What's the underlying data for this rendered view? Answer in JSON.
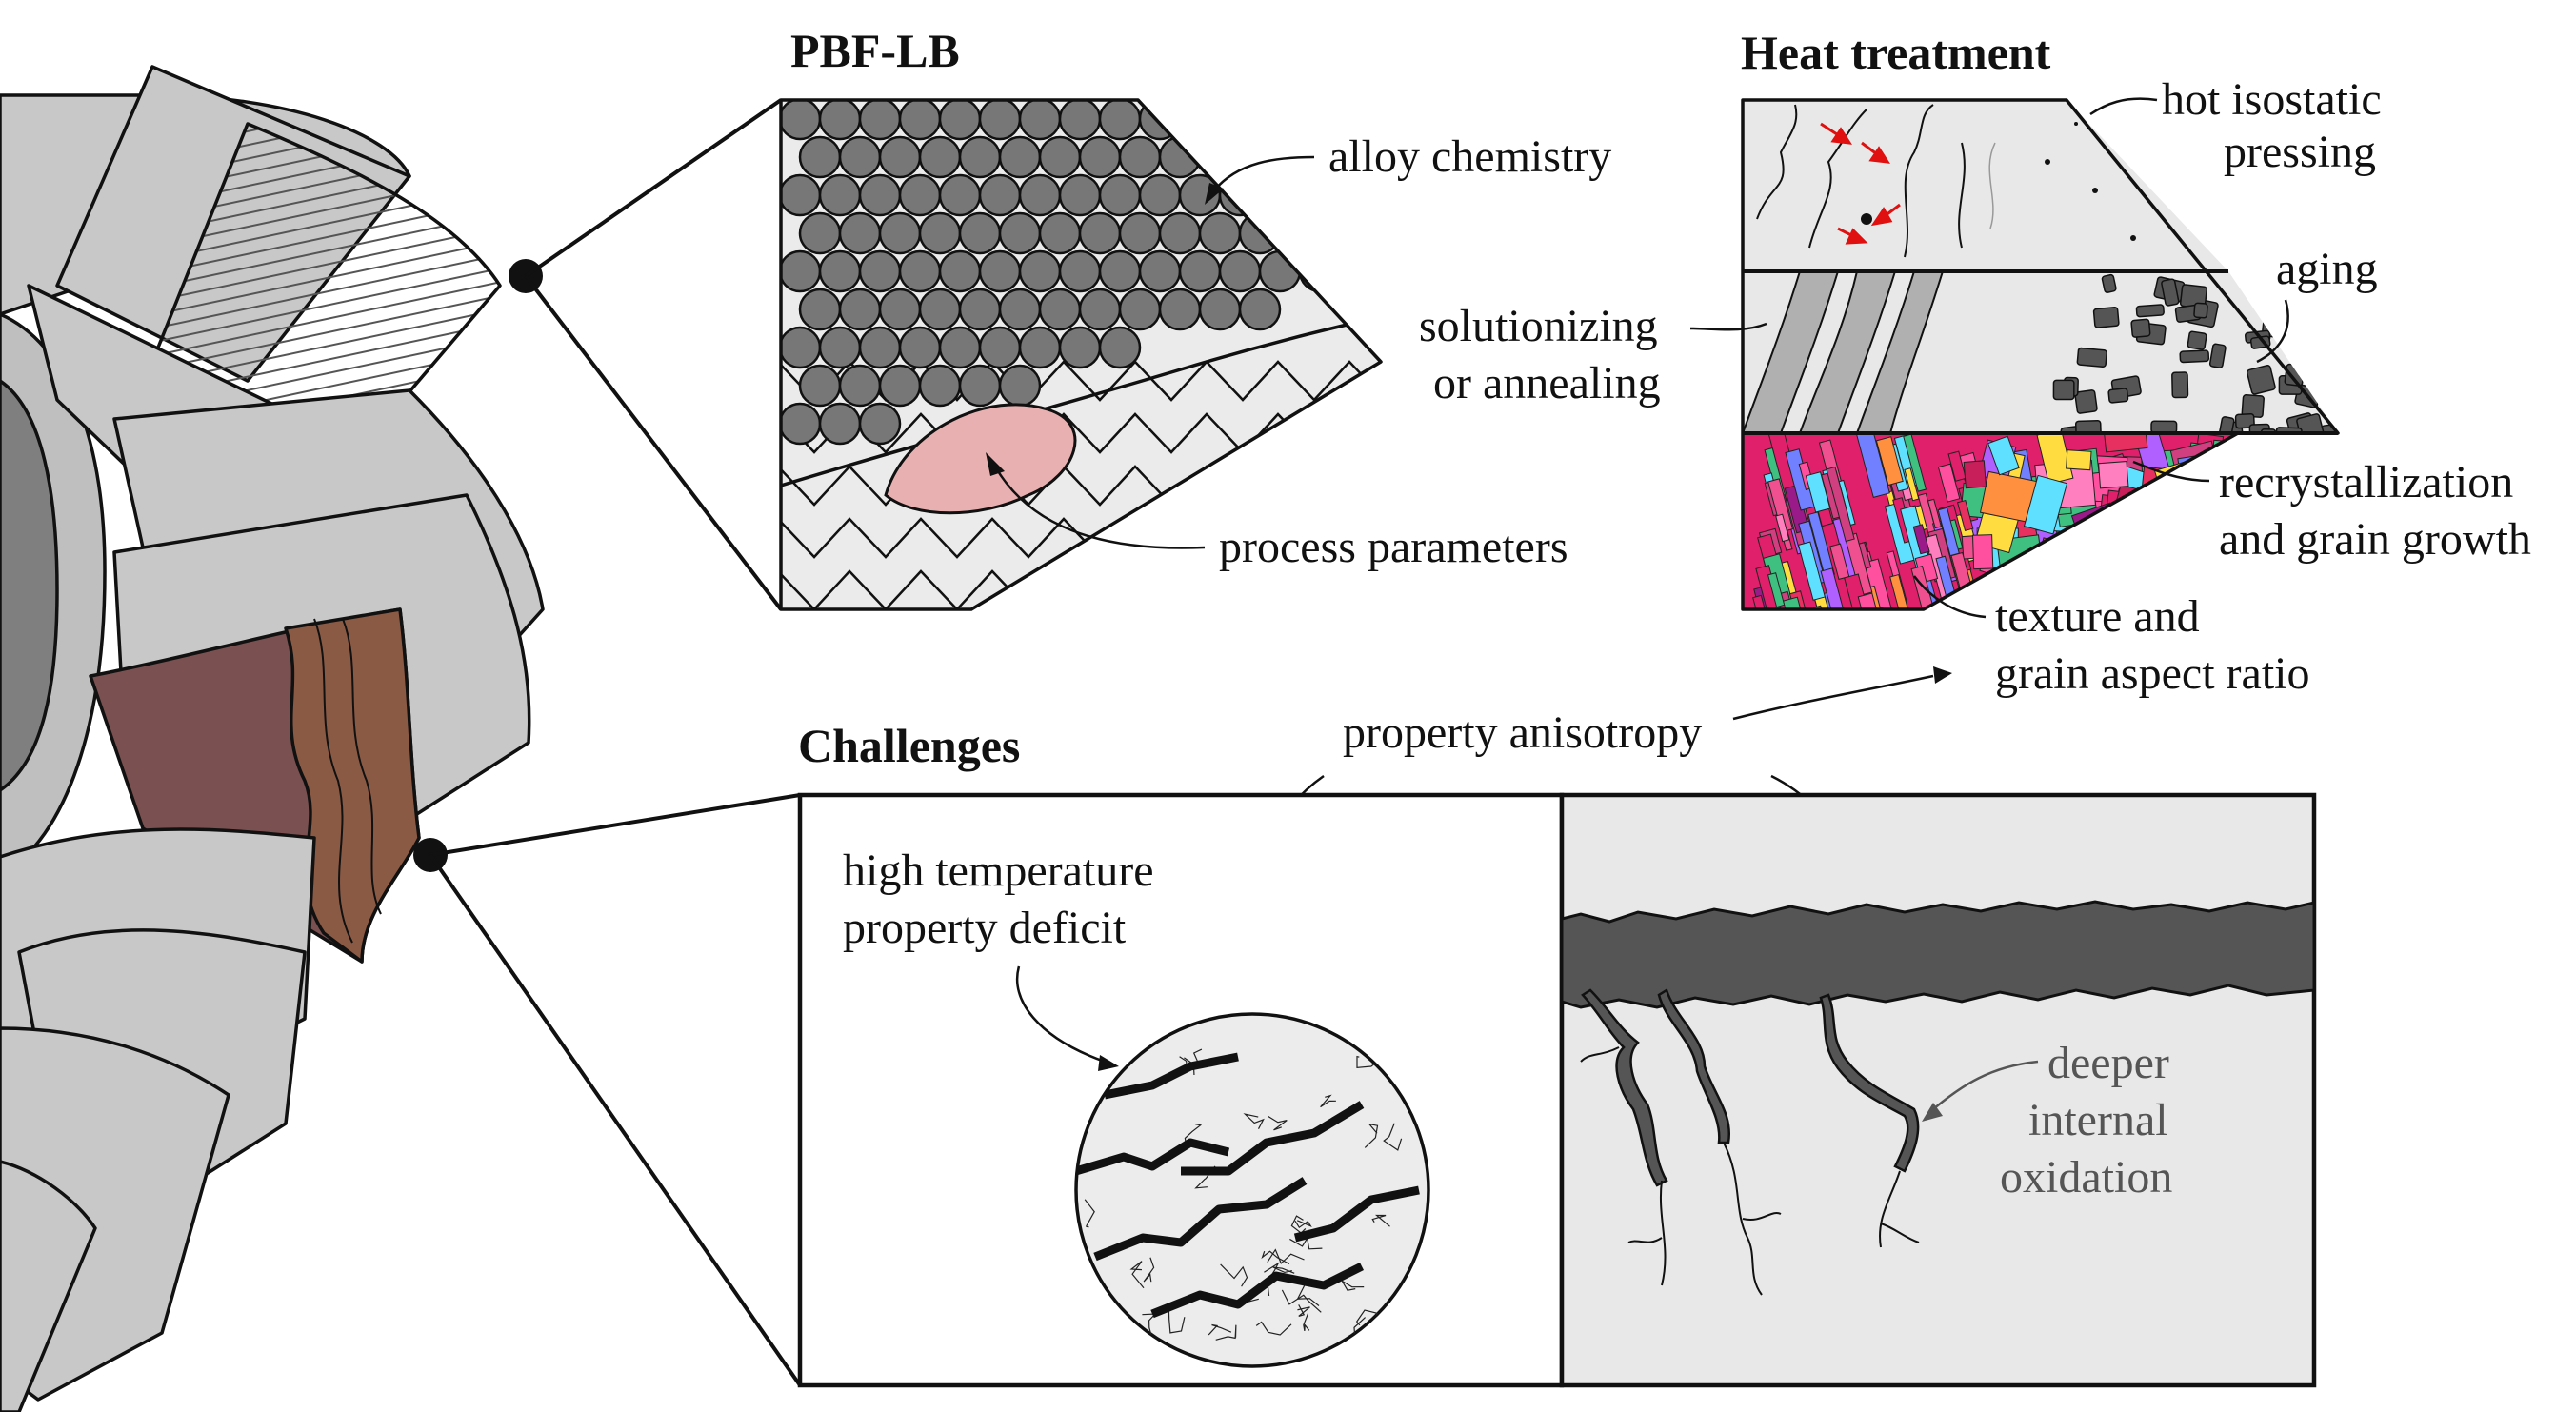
{
  "sections": {
    "pbf_lb": {
      "title": "PBF-LB",
      "labels": {
        "alloy_chemistry": "alloy chemistry",
        "process_parameters": "process parameters"
      }
    },
    "heat_treatment": {
      "title": "Heat treatment",
      "labels": {
        "hip_1": "hot isostatic",
        "hip_2": "pressing",
        "aging": "aging",
        "solution_1": "solutionizing",
        "solution_2": "or annealing",
        "recryst_1": "recrystallization",
        "recryst_2": "and grain growth",
        "texture_1": "texture and",
        "texture_2": "grain aspect ratio"
      }
    },
    "challenges": {
      "title": "Challenges",
      "labels": {
        "anisotropy": "property anisotropy",
        "deficit_1": "high temperature",
        "deficit_2": "property deficit",
        "oxidation_1": "deeper",
        "oxidation_2": "internal",
        "oxidation_3": "oxidation"
      }
    }
  },
  "colors": {
    "blade_fill": "#c8c8c8",
    "blade_highlight": "#b87a6e",
    "blade_dark": "#7a4f4a",
    "powder": "#777777",
    "melt_pool": "#e8b0b0",
    "panel_fill": "#e6e6e6",
    "oxide": "#555555",
    "arrow_red": "#e01010"
  },
  "ebsd_palette": [
    "#e0206a",
    "#f05090",
    "#ff7fbf",
    "#c81e5a",
    "#9b1a8a",
    "#ff9040",
    "#e83060",
    "#ffdd40",
    "#60e0ff",
    "#7080ff",
    "#b060ff",
    "#40c080",
    "#ff50a0",
    "#d04080"
  ]
}
